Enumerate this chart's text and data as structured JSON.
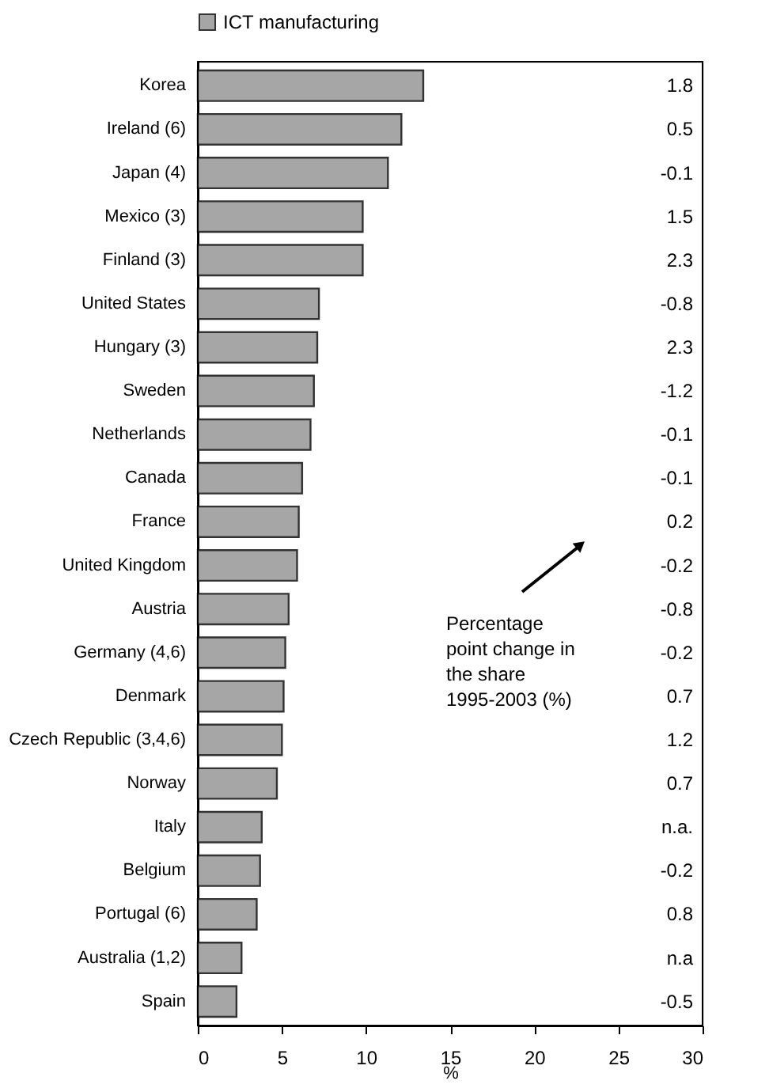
{
  "chart_data": {
    "type": "bar",
    "orientation": "horizontal",
    "categories": [
      "Korea",
      "Ireland (6)",
      "Japan (4)",
      "Mexico (3)",
      "Finland (3)",
      "United States",
      "Hungary (3)",
      "Sweden",
      "Netherlands",
      "Canada",
      "France",
      "United Kingdom",
      "Austria",
      "Germany (4,6)",
      "Denmark",
      "Czech Republic (3,4,6)",
      "Norway",
      "Italy",
      "Belgium",
      "Portugal (6)",
      "Australia (1,2)",
      "Spain"
    ],
    "series": [
      {
        "name": "ICT manufacturing",
        "color": "#a6a6a6",
        "values": [
          13.4,
          12.1,
          11.3,
          9.8,
          9.8,
          7.2,
          7.1,
          6.9,
          6.7,
          6.2,
          6.0,
          5.9,
          5.4,
          5.2,
          5.1,
          5.0,
          4.7,
          3.8,
          3.7,
          3.5,
          2.6,
          2.3
        ]
      }
    ],
    "xlim": [
      0,
      30
    ],
    "xticks": [
      0,
      5,
      10,
      15,
      20,
      25,
      30
    ],
    "xlabel": "%",
    "grid": false,
    "legend": "top",
    "annotations": [
      "Percentage point change in the share 1995-2003 (%)",
      "1.8",
      "0.5",
      "-0.1",
      "1.5",
      "2.3",
      "-0.8",
      "2.3",
      "-1.2",
      "-0.1",
      "-0.1",
      "0.2",
      "-0.2",
      "-0.8",
      "-0.2",
      "0.7",
      "1.2",
      "0.7",
      "n.a.",
      "-0.2",
      "0.8",
      "n.a",
      "-0.5"
    ]
  }
}
